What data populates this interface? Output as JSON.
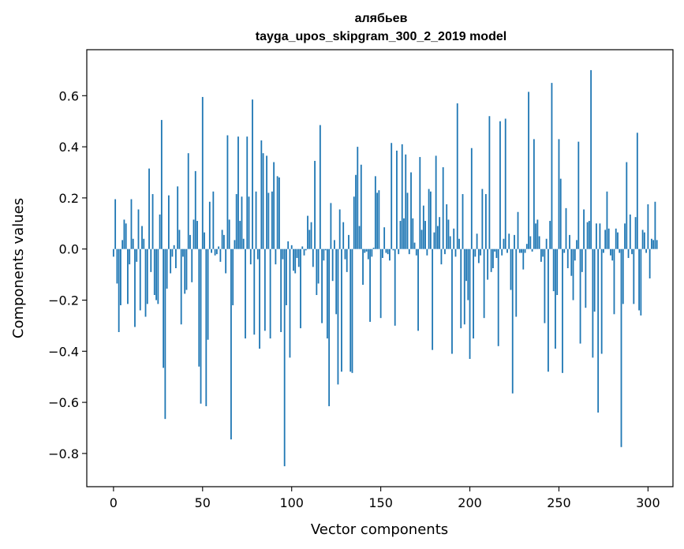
{
  "chart_data": {
    "type": "bar",
    "title_line1": "алябьев",
    "title_line2": "tayga_upos_skipgram_300_2_2019 model",
    "xlabel": "Vector components",
    "ylabel": "Components values",
    "xlim": [
      -15,
      314
    ],
    "ylim": [
      -0.93,
      0.78
    ],
    "x_ticks": [
      0,
      50,
      100,
      150,
      200,
      250,
      300
    ],
    "x_tick_labels": [
      "0",
      "50",
      "100",
      "150",
      "200",
      "250",
      "300"
    ],
    "y_ticks": [
      -0.8,
      -0.6,
      -0.4,
      -0.2,
      0.0,
      0.2,
      0.4,
      0.6
    ],
    "y_tick_labels": [
      "−0.8",
      "−0.6",
      "−0.4",
      "−0.2",
      "0.0",
      "0.2",
      "0.4",
      "0.6"
    ],
    "bar_color": "#1f77b4",
    "grid": false,
    "values": [
      -0.03,
      0.195,
      -0.135,
      -0.325,
      -0.22,
      0.035,
      0.115,
      0.1,
      -0.215,
      -0.06,
      0.195,
      0.04,
      -0.305,
      -0.05,
      0.155,
      -0.24,
      0.09,
      0.04,
      -0.265,
      -0.215,
      0.315,
      -0.09,
      0.215,
      -0.18,
      -0.2,
      -0.215,
      0.135,
      0.505,
      -0.465,
      -0.665,
      -0.155,
      0.21,
      -0.095,
      -0.03,
      0.015,
      -0.075,
      0.245,
      0.075,
      -0.295,
      -0.03,
      -0.175,
      -0.16,
      0.375,
      0.055,
      -0.13,
      0.115,
      0.305,
      0.11,
      -0.46,
      -0.605,
      0.595,
      0.065,
      -0.615,
      -0.355,
      0.185,
      -0.015,
      0.225,
      -0.025,
      -0.02,
      0.01,
      -0.05,
      0.075,
      0.055,
      -0.095,
      0.445,
      0.115,
      -0.745,
      -0.22,
      0.035,
      0.215,
      0.44,
      0.11,
      0.205,
      0.04,
      -0.35,
      0.44,
      0.205,
      -0.06,
      0.585,
      -0.335,
      0.225,
      -0.04,
      -0.39,
      0.425,
      0.375,
      -0.32,
      0.365,
      0.22,
      -0.35,
      0.225,
      0.34,
      -0.06,
      0.285,
      0.28,
      -0.325,
      -0.04,
      -0.85,
      -0.22,
      0.03,
      -0.425,
      0.015,
      -0.085,
      -0.095,
      -0.035,
      -0.07,
      -0.31,
      0.01,
      -0.025,
      -0.005,
      0.13,
      0.075,
      0.105,
      -0.07,
      0.345,
      -0.18,
      -0.135,
      0.485,
      -0.29,
      -0.045,
      -0.005,
      -0.35,
      -0.615,
      0.18,
      -0.125,
      0.035,
      -0.255,
      -0.53,
      0.155,
      -0.48,
      0.105,
      -0.04,
      -0.09,
      0.055,
      -0.48,
      -0.485,
      0.205,
      0.29,
      0.4,
      0.09,
      0.33,
      -0.14,
      -0.015,
      -0.01,
      -0.04,
      -0.285,
      -0.03,
      0.005,
      0.285,
      0.22,
      0.23,
      -0.27,
      -0.035,
      0.085,
      -0.015,
      -0.02,
      -0.045,
      0.415,
      -0.005,
      -0.3,
      0.385,
      -0.02,
      0.11,
      0.41,
      0.12,
      0.37,
      0.22,
      -0.02,
      0.3,
      0.12,
      0.025,
      -0.025,
      -0.32,
      0.36,
      0.075,
      0.17,
      0.11,
      -0.025,
      0.235,
      0.225,
      -0.395,
      0.065,
      0.365,
      0.09,
      0.125,
      -0.06,
      0.32,
      -0.02,
      0.175,
      0.115,
      0.05,
      -0.41,
      0.08,
      -0.03,
      0.57,
      0.04,
      -0.31,
      0.215,
      -0.295,
      -0.125,
      -0.2,
      -0.43,
      0.395,
      -0.35,
      -0.03,
      0.06,
      -0.055,
      -0.025,
      0.235,
      -0.27,
      0.215,
      -0.12,
      0.52,
      -0.09,
      -0.075,
      -0.01,
      -0.035,
      -0.38,
      0.5,
      -0.025,
      0.04,
      0.51,
      -0.015,
      0.06,
      -0.16,
      -0.565,
      0.055,
      -0.265,
      0.145,
      -0.015,
      -0.015,
      -0.08,
      -0.015,
      0.02,
      0.615,
      0.05,
      -0.01,
      0.43,
      0.1,
      0.115,
      0.05,
      -0.05,
      -0.03,
      -0.29,
      0.04,
      -0.48,
      0.11,
      0.65,
      -0.165,
      -0.39,
      -0.18,
      0.43,
      0.275,
      -0.485,
      -0.015,
      0.16,
      -0.075,
      0.055,
      -0.105,
      -0.2,
      -0.045,
      0.035,
      0.42,
      -0.37,
      -0.09,
      0.155,
      -0.23,
      0.105,
      0.11,
      0.7,
      -0.425,
      -0.245,
      0.1,
      -0.64,
      0.1,
      -0.41,
      -0.015,
      0.075,
      0.225,
      0.08,
      -0.025,
      -0.045,
      -0.255,
      0.08,
      0.065,
      -0.015,
      -0.775,
      -0.215,
      0.1,
      0.34,
      -0.035,
      0.135,
      -0.02,
      -0.215,
      0.125,
      0.455,
      -0.24,
      -0.26,
      0.075,
      0.065,
      -0.015,
      0.175,
      -0.115,
      0.04,
      0.035,
      0.185,
      0.035
    ]
  }
}
